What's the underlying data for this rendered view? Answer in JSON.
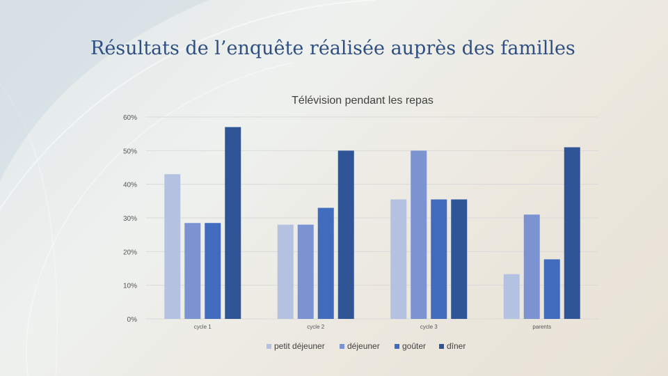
{
  "slide": {
    "title": "Résultats de l’enquête réalisée auprès des familles"
  },
  "chart_data": {
    "type": "bar",
    "title": "Télévision pendant les repas",
    "xlabel": "",
    "ylabel": "",
    "categories": [
      "cycle 1",
      "cycle 2",
      "cycle 3",
      "parents"
    ],
    "series": [
      {
        "name": "petit déjeuner",
        "color": "#b4c1e0",
        "values": [
          43,
          28,
          35.5,
          13.3
        ]
      },
      {
        "name": "déjeuner",
        "color": "#7b93d1",
        "values": [
          28.5,
          28,
          50,
          31
        ]
      },
      {
        "name": "goûter",
        "color": "#416bbd",
        "values": [
          28.5,
          33,
          35.5,
          17.7
        ]
      },
      {
        "name": "dîner",
        "color": "#2f5597",
        "values": [
          57,
          50,
          35.5,
          51
        ]
      }
    ],
    "ylim": [
      0,
      60
    ],
    "yticks": [
      0,
      10,
      20,
      30,
      40,
      50,
      60
    ],
    "ytick_labels": [
      "0%",
      "10%",
      "20%",
      "30%",
      "40%",
      "50%",
      "60%"
    ],
    "grid": true,
    "legend_position": "bottom"
  }
}
